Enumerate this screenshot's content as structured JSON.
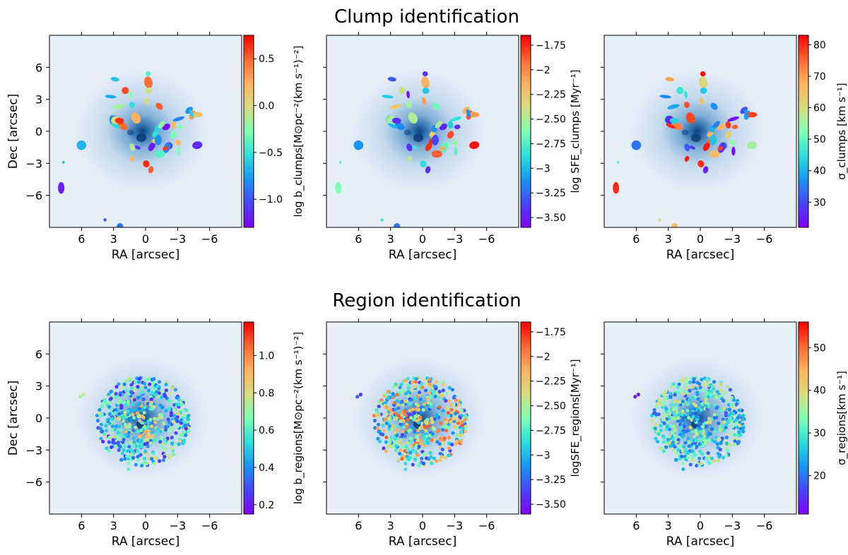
{
  "figure": {
    "row_titles": [
      "Clump identification",
      "Region identification"
    ]
  },
  "chart_data": [
    {
      "type": "scatter",
      "title": "",
      "xlabel": "RA [arcsec]",
      "ylabel": "Dec [arcsec]",
      "xlim": [
        9,
        -9
      ],
      "ylim": [
        -9,
        9
      ],
      "xticks": [
        6,
        3,
        0,
        -3,
        -6
      ],
      "yticks": [
        6,
        3,
        0,
        -3,
        -6
      ],
      "marker": "ellipse",
      "colormap": "rainbow",
      "colorbar": {
        "label": "log b_clumps[M⊙pc⁻²(km s⁻¹)⁻²]",
        "min": -1.3,
        "max": 0.75,
        "ticks": [
          0.5,
          0.0,
          -0.5,
          -1.0
        ]
      }
    },
    {
      "type": "scatter",
      "title": "",
      "xlabel": "RA [arcsec]",
      "ylabel": "",
      "xlim": [
        9,
        -9
      ],
      "ylim": [
        -9,
        9
      ],
      "xticks": [
        6,
        3,
        0,
        -3,
        -6
      ],
      "marker": "ellipse",
      "colormap": "rainbow",
      "colorbar": {
        "label": "log SFE_clumps [Myr⁻¹]",
        "min": -3.6,
        "max": -1.65,
        "ticks": [
          -1.75,
          -2.0,
          -2.25,
          -2.5,
          -2.75,
          -3.0,
          -3.25,
          -3.5
        ]
      }
    },
    {
      "type": "scatter",
      "title": "",
      "xlabel": "RA [arcsec]",
      "ylabel": "",
      "xlim": [
        9,
        -9
      ],
      "ylim": [
        -9,
        9
      ],
      "xticks": [
        6,
        3,
        0,
        -3,
        -6
      ],
      "marker": "ellipse",
      "colormap": "rainbow",
      "colorbar": {
        "label": "σ_clumps [km s⁻¹]",
        "min": 22,
        "max": 83,
        "ticks": [
          80,
          70,
          60,
          50,
          40,
          30
        ]
      }
    },
    {
      "type": "scatter",
      "title": "",
      "xlabel": "RA [arcsec]",
      "ylabel": "Dec [arcsec]",
      "xlim": [
        9,
        -9
      ],
      "ylim": [
        -9,
        9
      ],
      "xticks": [
        6,
        3,
        0,
        -3,
        -6
      ],
      "yticks": [
        6,
        3,
        0,
        -3,
        -6
      ],
      "marker": "dot",
      "colormap": "rainbow",
      "colorbar": {
        "label": "log b_regions[M⊙pc⁻²(km s⁻¹)⁻²]",
        "min": 0.15,
        "max": 1.18,
        "ticks": [
          1.0,
          0.8,
          0.6,
          0.4,
          0.2
        ]
      }
    },
    {
      "type": "scatter",
      "title": "",
      "xlabel": "RA [arcsec]",
      "ylabel": "",
      "xlim": [
        9,
        -9
      ],
      "ylim": [
        -9,
        9
      ],
      "xticks": [
        6,
        3,
        0,
        -3,
        -6
      ],
      "marker": "dot",
      "colormap": "rainbow",
      "colorbar": {
        "label": "logSFE_regions[Myr⁻¹]",
        "min": -3.6,
        "max": -1.65,
        "ticks": [
          -1.75,
          -2.0,
          -2.25,
          -2.5,
          -2.75,
          -3.0,
          -3.25,
          -3.5
        ]
      }
    },
    {
      "type": "scatter",
      "title": "",
      "xlabel": "RA [arcsec]",
      "ylabel": "",
      "xlim": [
        9,
        -9
      ],
      "ylim": [
        -9,
        9
      ],
      "xticks": [
        6,
        3,
        0,
        -3,
        -6
      ],
      "marker": "dot",
      "colormap": "rainbow",
      "colorbar": {
        "label": "σ_regions[km s⁻¹]",
        "min": 11,
        "max": 56,
        "ticks": [
          50,
          40,
          30,
          20
        ]
      }
    }
  ]
}
